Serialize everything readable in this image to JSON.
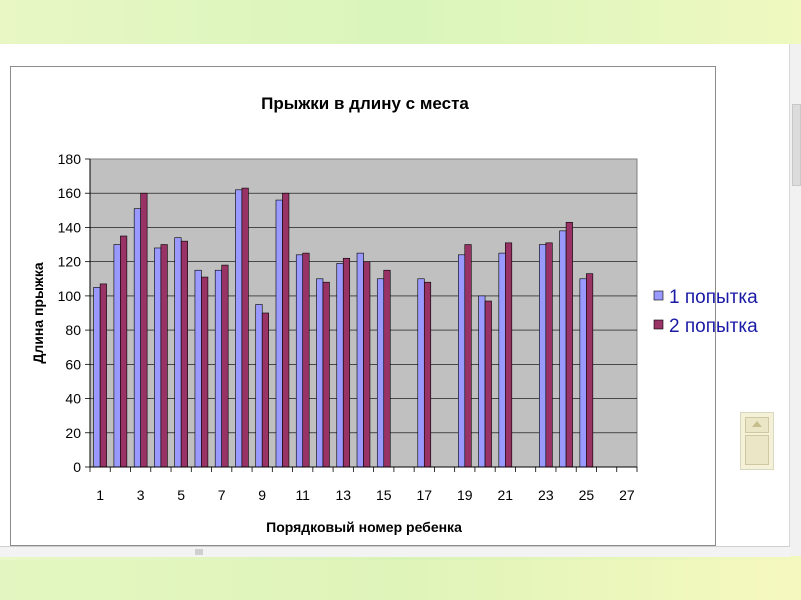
{
  "chart_data": {
    "type": "bar",
    "title": "Прыжки в длину с места",
    "xlabel": "Порядковый номер ребенка",
    "ylabel": "Длина прыжка",
    "ylim": [
      0,
      180
    ],
    "yticks": [
      "0",
      "20",
      "40",
      "60",
      "80",
      "100",
      "120",
      "140",
      "160",
      "180"
    ],
    "grid": true,
    "legend_position": "right",
    "categories": [
      "1",
      "2",
      "3",
      "4",
      "5",
      "6",
      "7",
      "8",
      "9",
      "10",
      "11",
      "12",
      "13",
      "14",
      "15",
      "16",
      "17",
      "18",
      "19",
      "20",
      "21",
      "22",
      "23",
      "24",
      "25",
      "26",
      "27"
    ],
    "xtick_labels": [
      "1",
      "3",
      "5",
      "7",
      "9",
      "11",
      "13",
      "15",
      "17",
      "19",
      "21",
      "23",
      "25",
      "27"
    ],
    "series": [
      {
        "name": "1 попытка",
        "color": "#9999ff",
        "values": [
          105,
          130,
          151,
          128,
          134,
          115,
          115,
          162,
          95,
          156,
          124,
          110,
          119,
          125,
          110,
          null,
          110,
          null,
          124,
          100,
          125,
          null,
          130,
          138,
          110,
          null,
          null
        ]
      },
      {
        "name": "2 попытка",
        "color": "#993366",
        "values": [
          107,
          135,
          160,
          130,
          132,
          111,
          118,
          163,
          90,
          160,
          125,
          108,
          122,
          120,
          115,
          null,
          108,
          null,
          130,
          97,
          131,
          null,
          131,
          143,
          113,
          null,
          null
        ]
      }
    ]
  }
}
